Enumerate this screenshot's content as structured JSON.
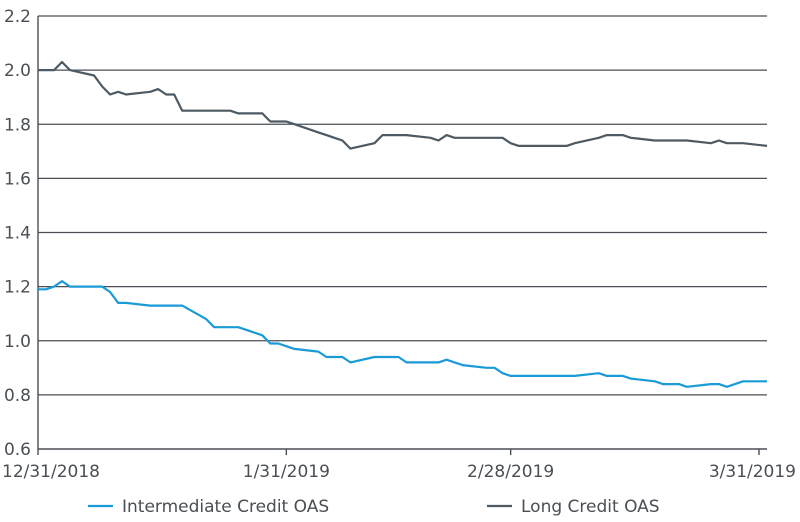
{
  "chart_data": {
    "type": "line",
    "title": "",
    "xlabel": "",
    "ylabel": "",
    "ylim": [
      0.6,
      2.2
    ],
    "yticks": [
      "0.6",
      "0.8",
      "1.0",
      "1.2",
      "1.4",
      "1.6",
      "1.8",
      "2.0",
      "2.2"
    ],
    "xlim": [
      "2018-12-31",
      "2019-04-01"
    ],
    "xticks": [
      {
        "date": "2018-12-31",
        "label": "12/31/2018"
      },
      {
        "date": "2019-01-31",
        "label": "1/31/2019"
      },
      {
        "date": "2019-02-28",
        "label": "2/28/2019"
      },
      {
        "date": "2019-03-31",
        "label": "3/31/2019"
      }
    ],
    "grid": "horizontal",
    "legend": "bottom",
    "series": [
      {
        "name": "Intermediate Credit OAS",
        "color": "#1a9ad6",
        "points": [
          [
            "2018-12-31",
            1.19
          ],
          [
            "2019-01-01",
            1.19
          ],
          [
            "2019-01-02",
            1.2
          ],
          [
            "2019-01-03",
            1.22
          ],
          [
            "2019-01-04",
            1.2
          ],
          [
            "2019-01-07",
            1.2
          ],
          [
            "2019-01-08",
            1.2
          ],
          [
            "2019-01-09",
            1.18
          ],
          [
            "2019-01-10",
            1.14
          ],
          [
            "2019-01-11",
            1.14
          ],
          [
            "2019-01-14",
            1.13
          ],
          [
            "2019-01-15",
            1.13
          ],
          [
            "2019-01-16",
            1.13
          ],
          [
            "2019-01-17",
            1.13
          ],
          [
            "2019-01-18",
            1.13
          ],
          [
            "2019-01-21",
            1.08
          ],
          [
            "2019-01-22",
            1.05
          ],
          [
            "2019-01-23",
            1.05
          ],
          [
            "2019-01-24",
            1.05
          ],
          [
            "2019-01-25",
            1.05
          ],
          [
            "2019-01-28",
            1.02
          ],
          [
            "2019-01-29",
            0.99
          ],
          [
            "2019-01-30",
            0.99
          ],
          [
            "2019-01-31",
            0.98
          ],
          [
            "2019-02-01",
            0.97
          ],
          [
            "2019-02-04",
            0.96
          ],
          [
            "2019-02-05",
            0.94
          ],
          [
            "2019-02-06",
            0.94
          ],
          [
            "2019-02-07",
            0.94
          ],
          [
            "2019-02-08",
            0.92
          ],
          [
            "2019-02-11",
            0.94
          ],
          [
            "2019-02-12",
            0.94
          ],
          [
            "2019-02-13",
            0.94
          ],
          [
            "2019-02-14",
            0.94
          ],
          [
            "2019-02-15",
            0.92
          ],
          [
            "2019-02-18",
            0.92
          ],
          [
            "2019-02-19",
            0.92
          ],
          [
            "2019-02-20",
            0.93
          ],
          [
            "2019-02-21",
            0.92
          ],
          [
            "2019-02-22",
            0.91
          ],
          [
            "2019-02-25",
            0.9
          ],
          [
            "2019-02-26",
            0.9
          ],
          [
            "2019-02-27",
            0.88
          ],
          [
            "2019-02-28",
            0.87
          ],
          [
            "2019-03-01",
            0.87
          ],
          [
            "2019-03-04",
            0.87
          ],
          [
            "2019-03-05",
            0.87
          ],
          [
            "2019-03-06",
            0.87
          ],
          [
            "2019-03-07",
            0.87
          ],
          [
            "2019-03-08",
            0.87
          ],
          [
            "2019-03-11",
            0.88
          ],
          [
            "2019-03-12",
            0.87
          ],
          [
            "2019-03-13",
            0.87
          ],
          [
            "2019-03-14",
            0.87
          ],
          [
            "2019-03-15",
            0.86
          ],
          [
            "2019-03-18",
            0.85
          ],
          [
            "2019-03-19",
            0.84
          ],
          [
            "2019-03-20",
            0.84
          ],
          [
            "2019-03-21",
            0.84
          ],
          [
            "2019-03-22",
            0.83
          ],
          [
            "2019-03-25",
            0.84
          ],
          [
            "2019-03-26",
            0.84
          ],
          [
            "2019-03-27",
            0.83
          ],
          [
            "2019-03-28",
            0.84
          ],
          [
            "2019-03-29",
            0.85
          ],
          [
            "2019-04-01",
            0.85
          ]
        ]
      },
      {
        "name": "Long Credit OAS",
        "color": "#4d5a63",
        "points": [
          [
            "2018-12-31",
            2.0
          ],
          [
            "2019-01-02",
            2.0
          ],
          [
            "2019-01-03",
            2.03
          ],
          [
            "2019-01-04",
            2.0
          ],
          [
            "2019-01-07",
            1.98
          ],
          [
            "2019-01-08",
            1.94
          ],
          [
            "2019-01-09",
            1.91
          ],
          [
            "2019-01-10",
            1.92
          ],
          [
            "2019-01-11",
            1.91
          ],
          [
            "2019-01-14",
            1.92
          ],
          [
            "2019-01-15",
            1.93
          ],
          [
            "2019-01-16",
            1.91
          ],
          [
            "2019-01-17",
            1.91
          ],
          [
            "2019-01-18",
            1.85
          ],
          [
            "2019-01-22",
            1.85
          ],
          [
            "2019-01-24",
            1.85
          ],
          [
            "2019-01-25",
            1.84
          ],
          [
            "2019-01-28",
            1.84
          ],
          [
            "2019-01-29",
            1.81
          ],
          [
            "2019-01-30",
            1.81
          ],
          [
            "2019-01-31",
            1.81
          ],
          [
            "2019-02-01",
            1.8
          ],
          [
            "2019-02-04",
            1.77
          ],
          [
            "2019-02-05",
            1.76
          ],
          [
            "2019-02-06",
            1.75
          ],
          [
            "2019-02-07",
            1.74
          ],
          [
            "2019-02-08",
            1.71
          ],
          [
            "2019-02-11",
            1.73
          ],
          [
            "2019-02-12",
            1.76
          ],
          [
            "2019-02-13",
            1.76
          ],
          [
            "2019-02-14",
            1.76
          ],
          [
            "2019-02-15",
            1.76
          ],
          [
            "2019-02-18",
            1.75
          ],
          [
            "2019-02-19",
            1.74
          ],
          [
            "2019-02-20",
            1.76
          ],
          [
            "2019-02-21",
            1.75
          ],
          [
            "2019-02-22",
            1.75
          ],
          [
            "2019-02-25",
            1.75
          ],
          [
            "2019-02-26",
            1.75
          ],
          [
            "2019-02-27",
            1.75
          ],
          [
            "2019-02-28",
            1.73
          ],
          [
            "2019-03-01",
            1.72
          ],
          [
            "2019-03-04",
            1.72
          ],
          [
            "2019-03-05",
            1.72
          ],
          [
            "2019-03-06",
            1.72
          ],
          [
            "2019-03-07",
            1.72
          ],
          [
            "2019-03-08",
            1.73
          ],
          [
            "2019-03-11",
            1.75
          ],
          [
            "2019-03-12",
            1.76
          ],
          [
            "2019-03-13",
            1.76
          ],
          [
            "2019-03-14",
            1.76
          ],
          [
            "2019-03-15",
            1.75
          ],
          [
            "2019-03-18",
            1.74
          ],
          [
            "2019-03-19",
            1.74
          ],
          [
            "2019-03-20",
            1.74
          ],
          [
            "2019-03-21",
            1.74
          ],
          [
            "2019-03-22",
            1.74
          ],
          [
            "2019-03-25",
            1.73
          ],
          [
            "2019-03-26",
            1.74
          ],
          [
            "2019-03-27",
            1.73
          ],
          [
            "2019-03-28",
            1.73
          ],
          [
            "2019-03-29",
            1.73
          ],
          [
            "2019-04-01",
            1.72
          ]
        ]
      }
    ]
  }
}
